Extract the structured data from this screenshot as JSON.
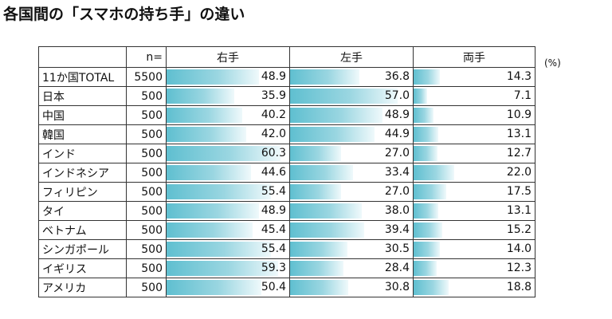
{
  "title": "各国間の「スマホの持ち手」の違い",
  "unit_label": "(%)",
  "chart_data": {
    "type": "table",
    "columns": [
      "",
      "n=",
      "右手",
      "左手",
      "両手"
    ],
    "series": [
      {
        "name": "右手",
        "values": [
          48.9,
          35.9,
          40.2,
          42.0,
          60.3,
          44.6,
          55.4,
          48.9,
          45.4,
          55.4,
          59.3,
          50.4
        ]
      },
      {
        "name": "左手",
        "values": [
          36.8,
          57.0,
          48.9,
          44.9,
          27.0,
          33.4,
          27.0,
          38.0,
          39.4,
          30.5,
          28.4,
          30.8
        ]
      },
      {
        "name": "両手",
        "values": [
          14.3,
          7.1,
          10.9,
          13.1,
          12.7,
          22.0,
          17.5,
          13.1,
          15.2,
          14.0,
          12.3,
          18.8
        ]
      }
    ],
    "rows": [
      {
        "label": "11か国TOTAL",
        "n": "5500",
        "right": "48.9",
        "left": "36.8",
        "both": "14.3"
      },
      {
        "label": "日本",
        "n": "500",
        "right": "35.9",
        "left": "57.0",
        "both": "7.1"
      },
      {
        "label": "中国",
        "n": "500",
        "right": "40.2",
        "left": "48.9",
        "both": "10.9"
      },
      {
        "label": "韓国",
        "n": "500",
        "right": "42.0",
        "left": "44.9",
        "both": "13.1"
      },
      {
        "label": "インド",
        "n": "500",
        "right": "60.3",
        "left": "27.0",
        "both": "12.7"
      },
      {
        "label": "インドネシア",
        "n": "500",
        "right": "44.6",
        "left": "33.4",
        "both": "22.0"
      },
      {
        "label": "フィリピン",
        "n": "500",
        "right": "55.4",
        "left": "27.0",
        "both": "17.5"
      },
      {
        "label": "タイ",
        "n": "500",
        "right": "48.9",
        "left": "38.0",
        "both": "13.1"
      },
      {
        "label": "ベトナム",
        "n": "500",
        "right": "45.4",
        "left": "39.4",
        "both": "15.2"
      },
      {
        "label": "シンガポール",
        "n": "500",
        "right": "55.4",
        "left": "30.5",
        "both": "14.0"
      },
      {
        "label": "イギリス",
        "n": "500",
        "right": "59.3",
        "left": "28.4",
        "both": "12.3"
      },
      {
        "label": "アメリカ",
        "n": "500",
        "right": "50.4",
        "left": "30.8",
        "both": "18.8"
      }
    ],
    "bar_scale_max": 65,
    "bar_color": "#5fbfd0"
  }
}
